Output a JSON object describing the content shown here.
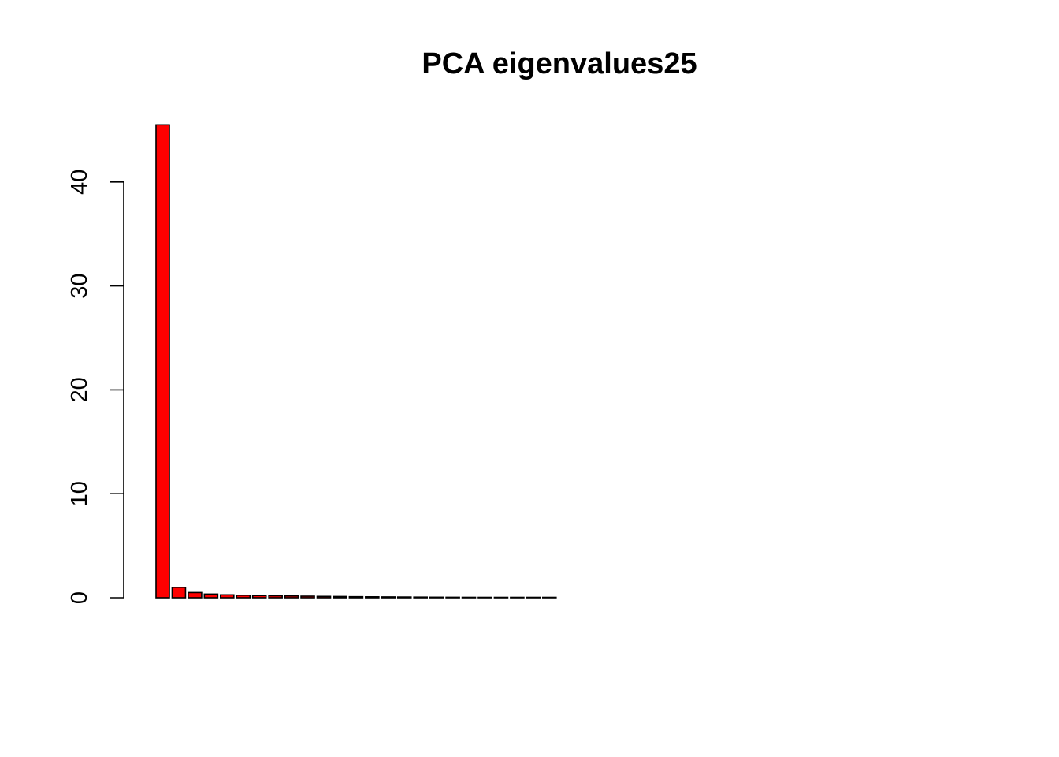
{
  "chart_data": {
    "type": "bar",
    "title": "PCA eigenvalues25",
    "xlabel": "",
    "ylabel": "",
    "ylim": [
      0,
      46
    ],
    "y_ticks": [
      0,
      10,
      20,
      30,
      40
    ],
    "y_tick_labels": [
      "0",
      "10",
      "20",
      "30",
      "40"
    ],
    "x_tick_labels": [],
    "bar_color": "#ff0000",
    "border_color": "#000000",
    "grid": false,
    "legend": "none",
    "values": [
      45.5,
      1.0,
      0.5,
      0.35,
      0.28,
      0.24,
      0.21,
      0.19,
      0.17,
      0.15,
      0.13,
      0.12,
      0.1,
      0.09,
      0.08,
      0.07,
      0.06,
      0.05,
      0.045,
      0.04,
      0.035,
      0.03,
      0.025,
      0.02,
      0.015
    ]
  }
}
